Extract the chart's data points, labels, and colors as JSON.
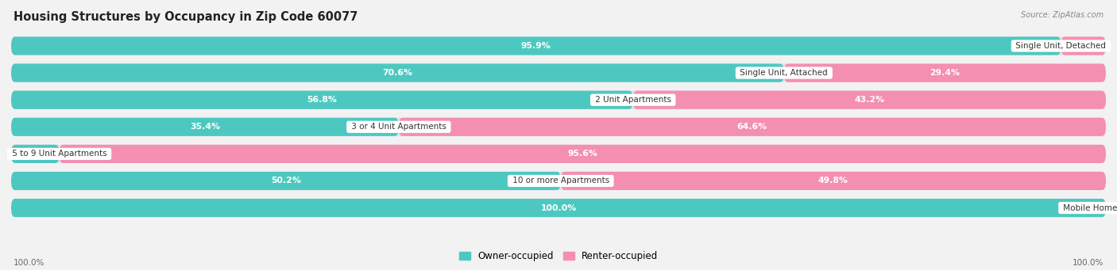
{
  "title": "Housing Structures by Occupancy in Zip Code 60077",
  "source": "Source: ZipAtlas.com",
  "categories": [
    "Single Unit, Detached",
    "Single Unit, Attached",
    "2 Unit Apartments",
    "3 or 4 Unit Apartments",
    "5 to 9 Unit Apartments",
    "10 or more Apartments",
    "Mobile Home / Other"
  ],
  "owner_pct": [
    95.9,
    70.6,
    56.8,
    35.4,
    4.4,
    50.2,
    100.0
  ],
  "renter_pct": [
    4.1,
    29.4,
    43.2,
    64.6,
    95.6,
    49.8,
    0.0
  ],
  "owner_color": "#4DC8C0",
  "renter_color": "#F48FB1",
  "bg_color": "#F2F2F2",
  "row_bg_color": "#E2E2E2",
  "title_fontsize": 10.5,
  "label_fontsize": 7.8,
  "cat_fontsize": 7.5,
  "bar_height": 0.68,
  "figsize": [
    14.06,
    3.41
  ],
  "dpi": 100
}
